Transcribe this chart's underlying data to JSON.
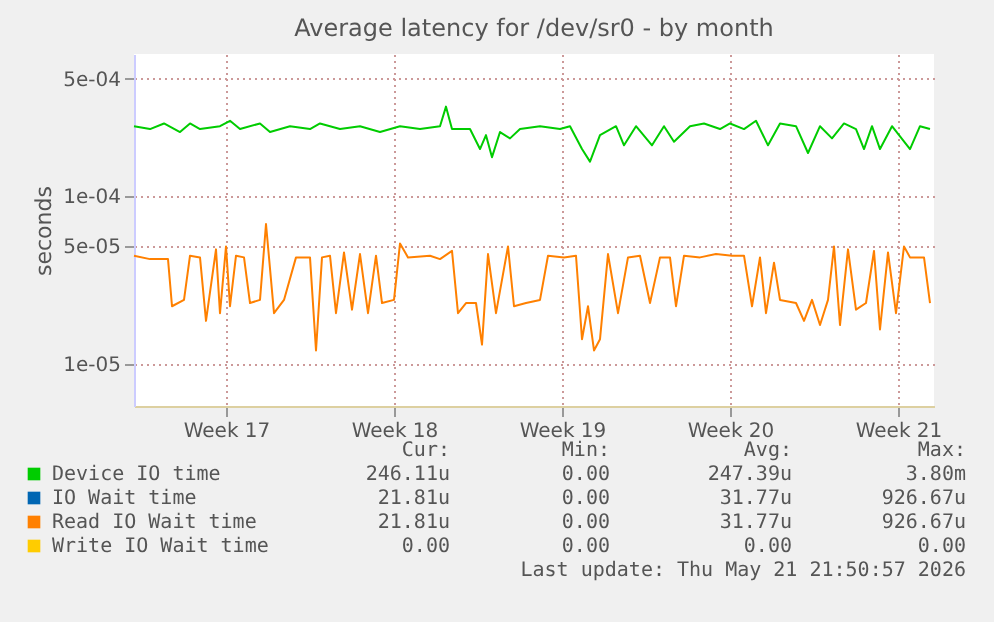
{
  "chart_data": {
    "type": "line",
    "title": "Average latency for /dev/sr0 - by month",
    "ylabel": "seconds",
    "log": true,
    "grid": true,
    "legend": "bottom",
    "line_style": "solid",
    "marker": "none",
    "xlim": [
      "2026-04-18T00:00",
      "2026-05-21T08:00"
    ],
    "xticks": [
      {
        "value": "2026-04-21T20:00",
        "label": "Week 17"
      },
      {
        "value": "2026-04-28T20:00",
        "label": "Week 18"
      },
      {
        "value": "2026-05-05T20:00",
        "label": "Week 19"
      },
      {
        "value": "2026-05-12T20:00",
        "label": "Week 20"
      },
      {
        "value": "2026-05-19T20:00",
        "label": "Week 21"
      }
    ],
    "ylim": [
      5.6e-06,
      0.0007
    ],
    "yticks": [
      {
        "value": 1e-05,
        "label": "1e-05"
      },
      {
        "value": 5e-05,
        "label": "5e-05"
      },
      {
        "value": 0.0001,
        "label": "1e-04"
      },
      {
        "value": 0.0005,
        "label": "5e-04"
      }
    ],
    "series": [
      {
        "name": "Device IO time",
        "color": "#00cc00",
        "x": [
          "2026-04-18T00:00",
          "2026-04-18T16:00",
          "2026-04-19T06:00",
          "2026-04-19T22:00",
          "2026-04-20T08:00",
          "2026-04-20T18:00",
          "2026-04-21T14:00",
          "2026-04-22T00:00",
          "2026-04-22T10:00",
          "2026-04-23T06:00",
          "2026-04-23T16:00",
          "2026-04-24T12:00",
          "2026-04-25T08:00",
          "2026-04-25T18:00",
          "2026-04-26T14:00",
          "2026-04-27T10:00",
          "2026-04-28T06:00",
          "2026-04-29T02:00",
          "2026-04-29T22:00",
          "2026-04-30T18:00",
          "2026-05-01T00:00",
          "2026-05-01T06:00",
          "2026-05-02T00:00",
          "2026-05-02T10:00",
          "2026-05-02T16:00",
          "2026-05-02T22:00",
          "2026-05-03T06:00",
          "2026-05-03T16:00",
          "2026-05-04T02:00",
          "2026-05-04T22:00",
          "2026-05-05T18:00",
          "2026-05-06T04:00",
          "2026-05-06T16:00",
          "2026-05-07T00:00",
          "2026-05-07T10:00",
          "2026-05-08T02:00",
          "2026-05-08T10:00",
          "2026-05-08T22:00",
          "2026-05-09T14:00",
          "2026-05-10T02:00",
          "2026-05-10T12:00",
          "2026-05-11T04:00",
          "2026-05-11T18:00",
          "2026-05-12T10:00",
          "2026-05-12T20:00",
          "2026-05-13T10:00",
          "2026-05-13T22:00",
          "2026-05-14T10:00",
          "2026-05-14T22:00",
          "2026-05-15T14:00",
          "2026-05-16T02:00",
          "2026-05-16T14:00",
          "2026-05-17T02:00",
          "2026-05-17T14:00",
          "2026-05-18T02:00",
          "2026-05-18T10:00",
          "2026-05-18T18:00",
          "2026-05-19T02:00",
          "2026-05-19T14:00",
          "2026-05-20T08:00",
          "2026-05-20T18:00",
          "2026-05-21T04:00"
        ],
        "values": [
          0.00026,
          0.00025,
          0.00027,
          0.00024,
          0.00027,
          0.00025,
          0.00026,
          0.00028,
          0.00025,
          0.00027,
          0.00024,
          0.00026,
          0.00025,
          0.00027,
          0.00025,
          0.00026,
          0.00024,
          0.00026,
          0.00025,
          0.00026,
          0.00034,
          0.00025,
          0.00025,
          0.00019,
          0.00023,
          0.00017,
          0.00024,
          0.00022,
          0.00025,
          0.00026,
          0.00025,
          0.00026,
          0.00019,
          0.00016,
          0.00023,
          0.00026,
          0.0002,
          0.00026,
          0.0002,
          0.00026,
          0.00021,
          0.00026,
          0.00027,
          0.00025,
          0.00027,
          0.00025,
          0.00028,
          0.0002,
          0.00027,
          0.00026,
          0.00018,
          0.00026,
          0.00022,
          0.00027,
          0.00025,
          0.00019,
          0.00026,
          0.00019,
          0.00026,
          0.00019,
          0.00026,
          0.00025
        ]
      },
      {
        "name": "IO Wait time",
        "color": "#0066b3"
      },
      {
        "name": "Read IO Wait time",
        "color": "#ff8000",
        "x": [
          "2026-04-18T00:00",
          "2026-04-18T16:00",
          "2026-04-19T10:00",
          "2026-04-19T14:00",
          "2026-04-20T02:00",
          "2026-04-20T08:00",
          "2026-04-20T18:00",
          "2026-04-21T00:00",
          "2026-04-21T10:00",
          "2026-04-21T14:00",
          "2026-04-21T20:00",
          "2026-04-22T00:00",
          "2026-04-22T06:00",
          "2026-04-22T14:00",
          "2026-04-22T20:00",
          "2026-04-23T06:00",
          "2026-04-23T12:00",
          "2026-04-23T20:00",
          "2026-04-24T06:00",
          "2026-04-24T18:00",
          "2026-04-25T08:00",
          "2026-04-25T14:00",
          "2026-04-25T20:00",
          "2026-04-26T04:00",
          "2026-04-26T10:00",
          "2026-04-26T18:00",
          "2026-04-27T02:00",
          "2026-04-27T10:00",
          "2026-04-27T18:00",
          "2026-04-28T02:00",
          "2026-04-28T08:00",
          "2026-04-28T20:00",
          "2026-04-29T02:00",
          "2026-04-29T10:00",
          "2026-04-30T08:00",
          "2026-04-30T18:00",
          "2026-05-01T06:00",
          "2026-05-01T12:00",
          "2026-05-01T20:00",
          "2026-05-02T06:00",
          "2026-05-02T12:00",
          "2026-05-02T18:00",
          "2026-05-03T02:00",
          "2026-05-03T14:00",
          "2026-05-03T20:00",
          "2026-05-04T08:00",
          "2026-05-04T22:00",
          "2026-05-05T06:00",
          "2026-05-05T22:00",
          "2026-05-06T10:00",
          "2026-05-06T16:00",
          "2026-05-06T22:00",
          "2026-05-07T04:00",
          "2026-05-07T10:00",
          "2026-05-07T18:00",
          "2026-05-08T04:00",
          "2026-05-08T14:00",
          "2026-05-09T02:00",
          "2026-05-09T12:00",
          "2026-05-09T22:00",
          "2026-05-10T08:00",
          "2026-05-10T14:00",
          "2026-05-10T22:00",
          "2026-05-11T14:00",
          "2026-05-12T06:00",
          "2026-05-12T22:00",
          "2026-05-13T10:00",
          "2026-05-13T18:00",
          "2026-05-14T02:00",
          "2026-05-14T08:00",
          "2026-05-14T16:00",
          "2026-05-14T22:00",
          "2026-05-15T14:00",
          "2026-05-15T22:00",
          "2026-05-16T06:00",
          "2026-05-16T14:00",
          "2026-05-16T22:00",
          "2026-05-17T04:00",
          "2026-05-17T10:00",
          "2026-05-17T18:00",
          "2026-05-18T02:00",
          "2026-05-18T12:00",
          "2026-05-18T20:00",
          "2026-05-19T02:00",
          "2026-05-19T10:00",
          "2026-05-19T18:00",
          "2026-05-20T02:00",
          "2026-05-20T08:00",
          "2026-05-20T22:00",
          "2026-05-21T04:00"
        ],
        "values": [
          4.4e-05,
          4.2e-05,
          4.2e-05,
          2.2e-05,
          2.4e-05,
          4.4e-05,
          4.3e-05,
          1.8e-05,
          4.8e-05,
          2e-05,
          5e-05,
          2.2e-05,
          4.4e-05,
          4.3e-05,
          2.3e-05,
          2.4e-05,
          6.8e-05,
          2e-05,
          2.4e-05,
          4.3e-05,
          4.3e-05,
          1.2e-05,
          4.3e-05,
          4.4e-05,
          2e-05,
          4.6e-05,
          2.1e-05,
          4.5e-05,
          2e-05,
          4.4e-05,
          2.3e-05,
          2.4e-05,
          5.2e-05,
          4.3e-05,
          4.4e-05,
          4.2e-05,
          4.7e-05,
          2e-05,
          2.3e-05,
          2.3e-05,
          1.3e-05,
          4.5e-05,
          2e-05,
          5e-05,
          2.2e-05,
          2.3e-05,
          2.4e-05,
          4.4e-05,
          4.3e-05,
          4.4e-05,
          1.4e-05,
          2.2e-05,
          1.2e-05,
          1.4e-05,
          4.5e-05,
          2e-05,
          4.3e-05,
          4.4e-05,
          2.3e-05,
          4.3e-05,
          4.3e-05,
          2.2e-05,
          4.4e-05,
          4.3e-05,
          4.5e-05,
          4.4e-05,
          4.4e-05,
          2.2e-05,
          4.3e-05,
          2e-05,
          4e-05,
          2.4e-05,
          2.3e-05,
          1.8e-05,
          2.4e-05,
          1.7e-05,
          2.4e-05,
          5e-05,
          1.7e-05,
          4.8e-05,
          2.1e-05,
          2.3e-05,
          4.7e-05,
          1.6e-05,
          4.6e-05,
          2e-05,
          5e-05,
          4.3e-05,
          4.3e-05,
          2.3e-05
        ]
      },
      {
        "name": "Write IO Wait time",
        "color": "#ffcc00"
      }
    ],
    "annotations": [
      "Cur:",
      "Min:",
      "Avg:",
      "Max:",
      "246.11u",
      "0.00",
      "247.39u",
      "3.80m",
      "21.81u",
      "0.00",
      "31.77u",
      "926.67u",
      "21.81u",
      "0.00",
      "31.77u",
      "926.67u",
      "0.00",
      "0.00",
      "0.00",
      "0.00",
      "Last update: Thu May 21 21:50:57 2026"
    ]
  }
}
